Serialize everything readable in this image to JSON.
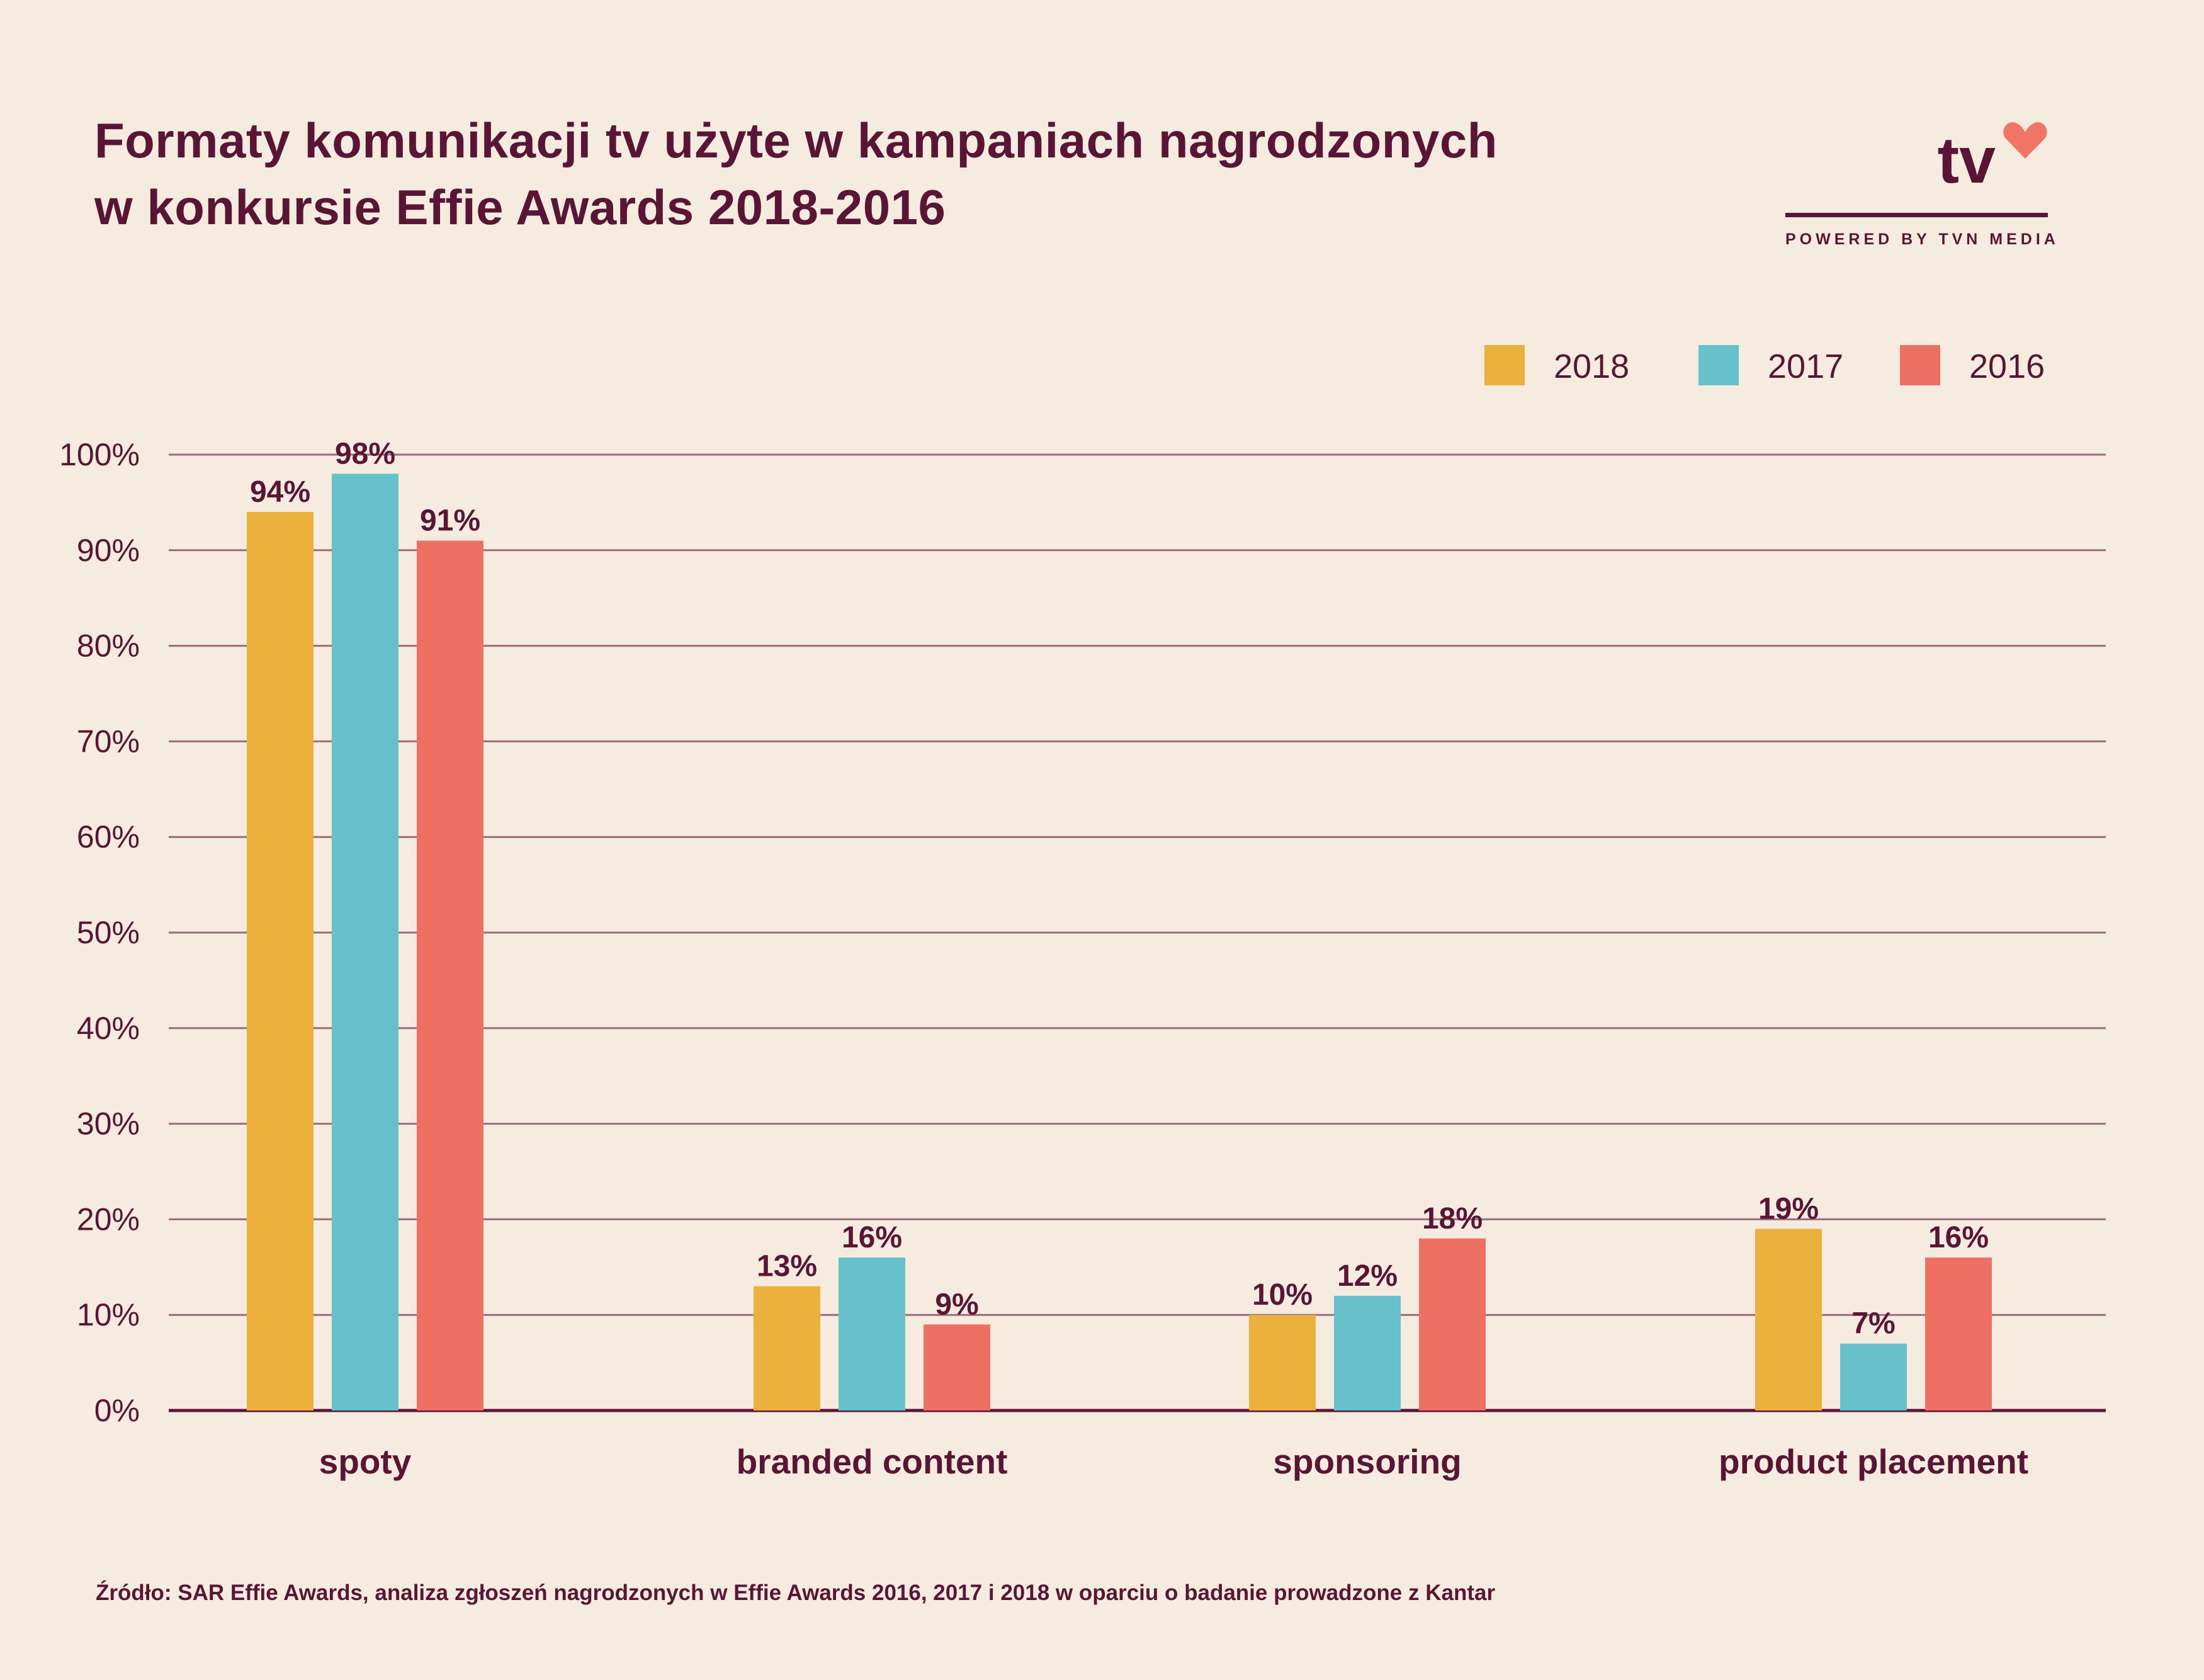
{
  "title": {
    "line1": "Formaty komunikacji tv użyte w kampaniach nagrodzonych",
    "line2": "w konkursie Effie Awards 2018-2016"
  },
  "logo": {
    "text": "tv",
    "tagline": "POWERED BY TVN MEDIA",
    "heart_color": "#f07566",
    "icon": "heart-icon"
  },
  "source": "Źródło: SAR Effie Awards, analiza zgłoszeń nagrodzonych w Effie Awards 2016, 2017 i 2018 w oparciu o badanie prowadzone z Kantar",
  "colors": {
    "background": "#f5ecdf",
    "text": "#5a1536",
    "grid": "#9c6b7e"
  },
  "chart_data": {
    "type": "bar",
    "categories": [
      "spoty",
      "branded content",
      "sponsoring",
      "product placement"
    ],
    "series": [
      {
        "name": "2018",
        "color": "#ecb03d",
        "values": [
          94,
          13,
          10,
          19
        ]
      },
      {
        "name": "2017",
        "color": "#66c1cb",
        "values": [
          98,
          16,
          12,
          7
        ]
      },
      {
        "name": "2016",
        "color": "#ee7063",
        "values": [
          91,
          9,
          18,
          16
        ]
      }
    ],
    "data_labels": [
      [
        "94%",
        "13%",
        "10%",
        "19%"
      ],
      [
        "98%",
        "16%",
        "12%",
        "7%"
      ],
      [
        "91%",
        "9%",
        "18%",
        "16%"
      ]
    ],
    "yticks": [
      "0%",
      "10%",
      "20%",
      "30%",
      "40%",
      "50%",
      "60%",
      "70%",
      "80%",
      "90%",
      "100%"
    ],
    "ylim": [
      0,
      100
    ],
    "grid": true,
    "legend": "top-right"
  }
}
